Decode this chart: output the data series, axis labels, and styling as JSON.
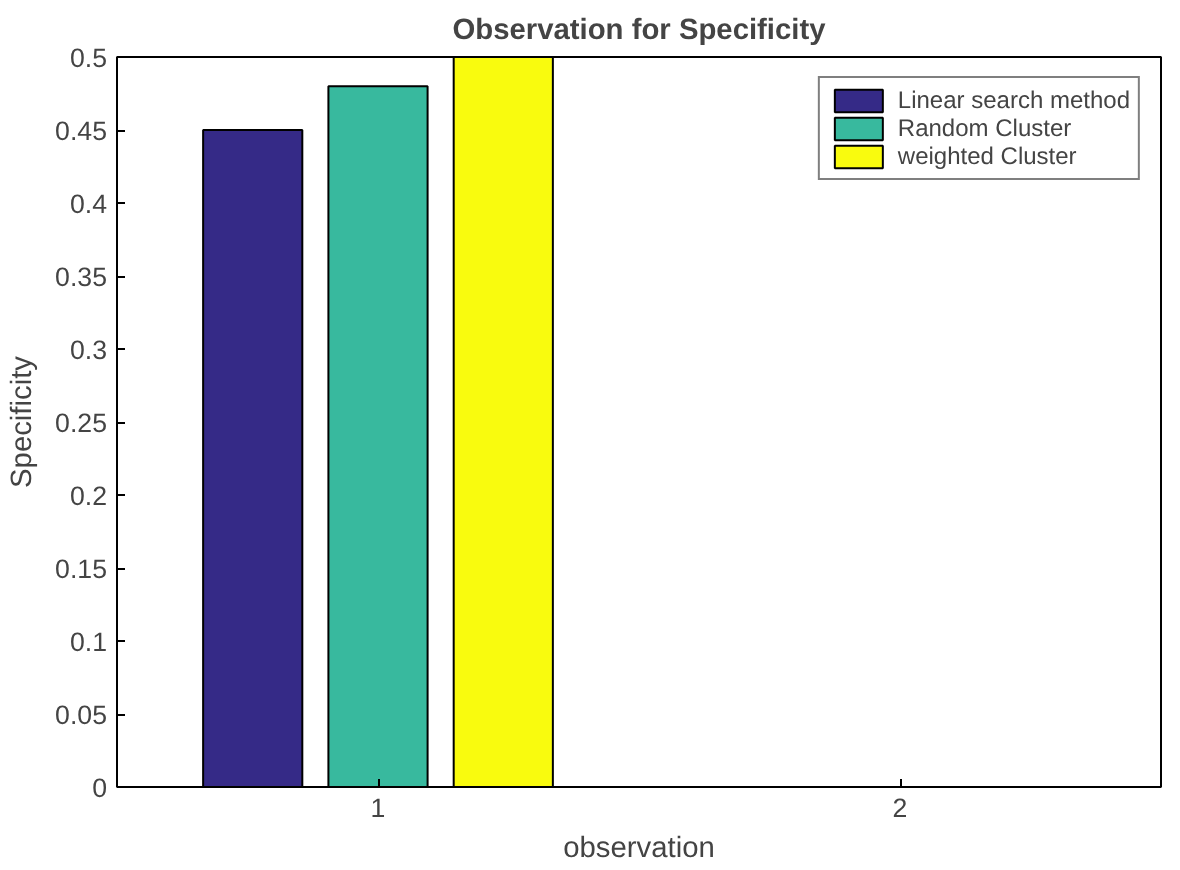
{
  "chart_data": {
    "type": "bar",
    "title": "Observation for Specificity",
    "xlabel": "observation",
    "ylabel": "Specificity",
    "categories": [
      "1",
      "2"
    ],
    "series": [
      {
        "name": "Linear search method",
        "color": "#352a87",
        "values": [
          0.45,
          null
        ]
      },
      {
        "name": "Random Cluster",
        "color": "#38b99e",
        "values": [
          0.48,
          null
        ]
      },
      {
        "name": "weighted Cluster",
        "color": "#f9fb0e",
        "values": [
          0.5,
          null
        ]
      }
    ],
    "ylim": [
      0,
      0.5
    ],
    "yticks": [
      0,
      0.05,
      0.1,
      0.15,
      0.2,
      0.25,
      0.3,
      0.35,
      0.4,
      0.45,
      0.5
    ],
    "grid": false,
    "legend": "top right"
  }
}
